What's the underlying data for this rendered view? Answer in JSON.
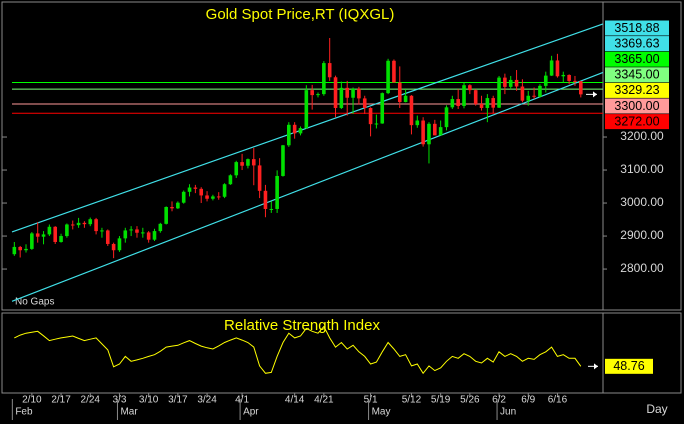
{
  "chart_data": {
    "type": "candlestick",
    "title": "Gold Spot Price,RT (IQXGL)",
    "note": "No Gaps",
    "x_label": "Day",
    "xlim": [
      -0.4,
      100.8
    ],
    "xticks": [
      {
        "value": 3,
        "label": "2/10"
      },
      {
        "value": 8,
        "label": "2/17"
      },
      {
        "value": 13,
        "label": "2/24"
      },
      {
        "value": 18,
        "label": "3/3"
      },
      {
        "value": 23,
        "label": "3/10"
      },
      {
        "value": 28,
        "label": "3/17"
      },
      {
        "value": 33,
        "label": "3/24"
      },
      {
        "value": 39,
        "label": "4/1"
      },
      {
        "value": 48,
        "label": "4/14"
      },
      {
        "value": 53,
        "label": "4/21"
      },
      {
        "value": 61,
        "label": "5/1"
      },
      {
        "value": 68,
        "label": "5/12"
      },
      {
        "value": 73,
        "label": "5/19"
      },
      {
        "value": 78,
        "label": "5/26"
      },
      {
        "value": 83,
        "label": "6/2"
      },
      {
        "value": 88,
        "label": "6/9"
      },
      {
        "value": 93,
        "label": "6/16"
      }
    ],
    "month_ticks": [
      {
        "value": 0,
        "label": "Feb"
      },
      {
        "value": 18,
        "label": "Mar"
      },
      {
        "value": 39,
        "label": "Apr"
      },
      {
        "value": 61,
        "label": "May"
      },
      {
        "value": 83,
        "label": "Jun"
      }
    ],
    "ylim": [
      2682,
      3603
    ],
    "yticks": [
      {
        "value": 3200,
        "label": "3200.00"
      },
      {
        "value": 3100,
        "label": "3100.00"
      },
      {
        "value": 3000,
        "label": "3000.00"
      },
      {
        "value": 2900,
        "label": "2900.00"
      },
      {
        "value": 2800,
        "label": "2800.00"
      }
    ],
    "up_color": "#00e000",
    "down_color": "#ff2020",
    "open": [
      2845,
      2867,
      2857,
      2861,
      2908,
      2898,
      2905,
      2928,
      2882,
      2900,
      2935,
      2933,
      2940,
      2936,
      2951,
      2915,
      2917,
      2876,
      2857,
      2893,
      2917,
      2920,
      2910,
      2911,
      2889,
      2915,
      2937,
      2988,
      2984,
      3001,
      3034,
      3047,
      3043,
      3023,
      3013,
      3020,
      3019,
      3057,
      3084,
      3124,
      3113,
      3133,
      3114,
      3037,
      2982,
      2982,
      3082,
      3175,
      3237,
      3211,
      3227,
      3342,
      3327,
      3330,
      3424,
      3381,
      3288,
      3349,
      3319,
      3346,
      3317,
      3288,
      3239,
      3241,
      3333,
      3431,
      3365,
      3306,
      3325,
      3236,
      3250,
      3178,
      3240,
      3205,
      3230,
      3290,
      3315,
      3294,
      3357,
      3342,
      3300,
      3288,
      3318,
      3289,
      3380,
      3352,
      3373,
      3353,
      3310,
      3325,
      3322,
      3355,
      3386,
      3432,
      3384,
      3388,
      3370,
      3369
    ],
    "high": [
      2882,
      2870,
      2875,
      2912,
      2942,
      2915,
      2935,
      2930,
      2907,
      2938,
      2947,
      2955,
      2945,
      2956,
      2955,
      2925,
      2920,
      2880,
      2900,
      2925,
      2930,
      2930,
      2925,
      2915,
      2922,
      2940,
      2990,
      3005,
      3005,
      3038,
      3057,
      3055,
      3048,
      3036,
      3025,
      3033,
      3060,
      3087,
      3128,
      3149,
      3135,
      3167,
      3136,
      3055,
      3005,
      3099,
      3176,
      3245,
      3245,
      3232,
      3357,
      3358,
      3335,
      3430,
      3500,
      3386,
      3368,
      3370,
      3350,
      3352,
      3325,
      3290,
      3268,
      3335,
      3437,
      3435,
      3414,
      3345,
      3327,
      3265,
      3260,
      3245,
      3252,
      3250,
      3296,
      3325,
      3345,
      3365,
      3360,
      3345,
      3325,
      3330,
      3325,
      3385,
      3392,
      3385,
      3403,
      3375,
      3340,
      3350,
      3360,
      3398,
      3446,
      3452,
      3398,
      3390,
      3385,
      3370
    ],
    "low": [
      2840,
      2835,
      2850,
      2858,
      2880,
      2875,
      2900,
      2876,
      2880,
      2895,
      2920,
      2925,
      2925,
      2930,
      2905,
      2895,
      2870,
      2833,
      2852,
      2880,
      2900,
      2895,
      2895,
      2880,
      2885,
      2910,
      2935,
      2975,
      2982,
      2998,
      3020,
      3030,
      3000,
      3005,
      3008,
      3010,
      3015,
      3055,
      3076,
      3100,
      3105,
      3054,
      3015,
      2957,
      2970,
      2970,
      3080,
      3170,
      3195,
      3205,
      3225,
      3283,
      3320,
      3325,
      3370,
      3260,
      3285,
      3265,
      3270,
      3298,
      3270,
      3202,
      3226,
      3240,
      3330,
      3365,
      3288,
      3305,
      3208,
      3228,
      3171,
      3120,
      3205,
      3205,
      3220,
      3285,
      3285,
      3287,
      3330,
      3295,
      3280,
      3245,
      3272,
      3288,
      3330,
      3345,
      3340,
      3305,
      3295,
      3315,
      3320,
      3335,
      3385,
      3380,
      3365,
      3360,
      3355,
      3320
    ],
    "close": [
      2867,
      2857,
      2861,
      2908,
      2898,
      2905,
      2928,
      2882,
      2900,
      2935,
      2933,
      2940,
      2936,
      2951,
      2915,
      2917,
      2876,
      2857,
      2893,
      2917,
      2920,
      2910,
      2911,
      2889,
      2915,
      2937,
      2988,
      2984,
      3001,
      3034,
      3047,
      3043,
      3023,
      3013,
      3020,
      3019,
      3057,
      3084,
      3124,
      3113,
      3133,
      3114,
      3037,
      2982,
      2982,
      3082,
      3175,
      3237,
      3211,
      3227,
      3342,
      3327,
      3330,
      3424,
      3381,
      3288,
      3349,
      3319,
      3346,
      3317,
      3288,
      3239,
      3241,
      3333,
      3431,
      3365,
      3306,
      3325,
      3236,
      3250,
      3178,
      3240,
      3205,
      3230,
      3290,
      3315,
      3294,
      3357,
      3342,
      3300,
      3288,
      3318,
      3289,
      3380,
      3352,
      3373,
      3353,
      3310,
      3325,
      3322,
      3355,
      3386,
      3432,
      3384,
      3388,
      3370,
      3369,
      3329.23
    ],
    "last_color": "#ffff00",
    "levels": [
      {
        "value": 3365,
        "label": "3365.00",
        "color": "#00ff00"
      },
      {
        "value": 3345,
        "label": "3345.00",
        "color": "#80ff80"
      },
      {
        "value": 3300,
        "label": "3300.00",
        "color": "#ff9a9a"
      },
      {
        "value": 3272,
        "label": "3272.00",
        "color": "#ff0000"
      }
    ],
    "trend_lines": [
      {
        "start": [
          0,
          2915
        ],
        "end": [
          97,
          3518.88
        ],
        "color": "#40e0e8"
      },
      {
        "start": [
          0,
          2705
        ],
        "end": [
          97,
          3369.63
        ],
        "color": "#40e0e8"
      }
    ],
    "indicator": {
      "type": "line",
      "title": "Relative Strength Index",
      "color": "#ffff00",
      "ylim": [
        35,
        78
      ],
      "values": [
        65.3,
        66.9,
        68.0,
        68.6,
        69.1,
        66.5,
        63.7,
        64.5,
        65.3,
        65.8,
        66.4,
        65.0,
        63.7,
        64.5,
        65.3,
        61.8,
        58.3,
        48.5,
        50.1,
        54.5,
        51.7,
        52.5,
        53.4,
        54.5,
        55.5,
        57.5,
        59.9,
        60.5,
        61.0,
        62.4,
        63.7,
        62.0,
        60.5,
        59.5,
        58.8,
        60.6,
        62.6,
        64.0,
        65.3,
        64.0,
        62.6,
        59.9,
        49.0,
        44.7,
        45.2,
        54.5,
        62.6,
        68.0,
        65.3,
        66.4,
        70.8,
        69.1,
        68.0,
        71.9,
        65.3,
        59.9,
        62.6,
        58.8,
        61.0,
        57.2,
        54.5,
        50.1,
        51.2,
        57.2,
        62.6,
        58.8,
        54.5,
        55.5,
        49.0,
        50.1,
        44.7,
        49.0,
        46.3,
        47.9,
        51.7,
        54.5,
        53.4,
        56.1,
        54.5,
        51.7,
        50.7,
        53.4,
        51.2,
        57.2,
        54.5,
        56.1,
        54.5,
        51.7,
        53.4,
        52.8,
        55.5,
        57.2,
        59.9,
        54.5,
        55.5,
        53.4,
        53.4,
        48.76
      ]
    }
  }
}
